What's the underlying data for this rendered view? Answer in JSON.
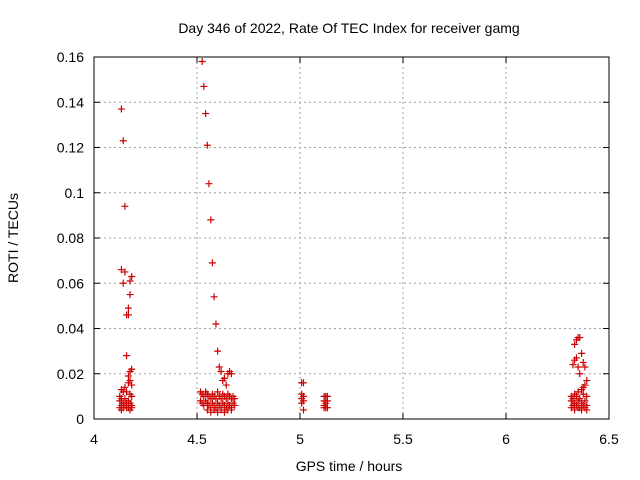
{
  "chart_data": {
    "type": "scatter",
    "title": "Day 346 of 2022, Rate Of TEC Index for receiver gamg",
    "xlabel": "GPS time / hours",
    "ylabel": "ROTI / TECUs",
    "xlim": [
      4,
      6.5
    ],
    "ylim": [
      0,
      0.16
    ],
    "x_ticks": [
      "4",
      "4.5",
      "5",
      "5.5",
      "6",
      "6.5"
    ],
    "y_ticks": [
      "0",
      "0.02",
      "0.04",
      "0.06",
      "0.08",
      "0.1",
      "0.12",
      "0.14",
      "0.16"
    ],
    "grid": true,
    "marker": "plus",
    "series_color": "#cc0000",
    "points": [
      [
        4.133,
        0.137
      ],
      [
        4.142,
        0.123
      ],
      [
        4.15,
        0.094
      ],
      [
        4.133,
        0.066
      ],
      [
        4.15,
        0.065
      ],
      [
        4.142,
        0.06
      ],
      [
        4.183,
        0.063
      ],
      [
        4.175,
        0.061
      ],
      [
        4.175,
        0.055
      ],
      [
        4.167,
        0.049
      ],
      [
        4.158,
        0.046
      ],
      [
        4.167,
        0.046
      ],
      [
        4.158,
        0.028
      ],
      [
        4.183,
        0.022
      ],
      [
        4.175,
        0.021
      ],
      [
        4.167,
        0.019
      ],
      [
        4.175,
        0.017
      ],
      [
        4.167,
        0.016
      ],
      [
        4.183,
        0.015
      ],
      [
        4.15,
        0.014
      ],
      [
        4.133,
        0.013
      ],
      [
        4.142,
        0.012
      ],
      [
        4.158,
        0.012
      ],
      [
        4.175,
        0.011
      ],
      [
        4.125,
        0.01
      ],
      [
        4.183,
        0.01
      ],
      [
        4.133,
        0.009
      ],
      [
        4.15,
        0.009
      ],
      [
        4.167,
        0.008
      ],
      [
        4.125,
        0.008
      ],
      [
        4.142,
        0.007
      ],
      [
        4.158,
        0.007
      ],
      [
        4.175,
        0.007
      ],
      [
        4.183,
        0.006
      ],
      [
        4.133,
        0.006
      ],
      [
        4.15,
        0.006
      ],
      [
        4.167,
        0.005
      ],
      [
        4.125,
        0.005
      ],
      [
        4.142,
        0.005
      ],
      [
        4.158,
        0.005
      ],
      [
        4.175,
        0.004
      ],
      [
        4.183,
        0.005
      ],
      [
        4.133,
        0.004
      ],
      [
        4.525,
        0.158
      ],
      [
        4.533,
        0.147
      ],
      [
        4.542,
        0.135
      ],
      [
        4.55,
        0.121
      ],
      [
        4.558,
        0.104
      ],
      [
        4.567,
        0.088
      ],
      [
        4.575,
        0.069
      ],
      [
        4.583,
        0.054
      ],
      [
        4.592,
        0.042
      ],
      [
        4.6,
        0.03
      ],
      [
        4.608,
        0.023
      ],
      [
        4.617,
        0.021
      ],
      [
        4.625,
        0.017
      ],
      [
        4.633,
        0.018
      ],
      [
        4.65,
        0.02
      ],
      [
        4.658,
        0.021
      ],
      [
        4.667,
        0.02
      ],
      [
        4.642,
        0.015
      ],
      [
        4.517,
        0.012
      ],
      [
        4.525,
        0.011
      ],
      [
        4.533,
        0.01
      ],
      [
        4.542,
        0.012
      ],
      [
        4.55,
        0.011
      ],
      [
        4.558,
        0.01
      ],
      [
        4.567,
        0.009
      ],
      [
        4.575,
        0.011
      ],
      [
        4.583,
        0.01
      ],
      [
        4.592,
        0.009
      ],
      [
        4.6,
        0.012
      ],
      [
        4.608,
        0.01
      ],
      [
        4.617,
        0.009
      ],
      [
        4.625,
        0.011
      ],
      [
        4.633,
        0.01
      ],
      [
        4.642,
        0.009
      ],
      [
        4.65,
        0.011
      ],
      [
        4.658,
        0.01
      ],
      [
        4.667,
        0.009
      ],
      [
        4.675,
        0.01
      ],
      [
        4.683,
        0.009
      ],
      [
        4.517,
        0.008
      ],
      [
        4.525,
        0.007
      ],
      [
        4.533,
        0.006
      ],
      [
        4.542,
        0.008
      ],
      [
        4.55,
        0.007
      ],
      [
        4.558,
        0.006
      ],
      [
        4.567,
        0.005
      ],
      [
        4.575,
        0.007
      ],
      [
        4.583,
        0.006
      ],
      [
        4.592,
        0.005
      ],
      [
        4.6,
        0.007
      ],
      [
        4.608,
        0.006
      ],
      [
        4.617,
        0.005
      ],
      [
        4.625,
        0.007
      ],
      [
        4.633,
        0.006
      ],
      [
        4.642,
        0.005
      ],
      [
        4.65,
        0.007
      ],
      [
        4.658,
        0.006
      ],
      [
        4.667,
        0.005
      ],
      [
        4.675,
        0.007
      ],
      [
        4.683,
        0.006
      ],
      [
        4.55,
        0.004
      ],
      [
        4.567,
        0.003
      ],
      [
        4.583,
        0.004
      ],
      [
        4.6,
        0.003
      ],
      [
        4.617,
        0.004
      ],
      [
        4.633,
        0.003
      ],
      [
        4.65,
        0.004
      ],
      [
        4.667,
        0.004
      ],
      [
        5.008,
        0.016
      ],
      [
        5.017,
        0.016
      ],
      [
        5.008,
        0.011
      ],
      [
        5.017,
        0.01
      ],
      [
        5.008,
        0.009
      ],
      [
        5.017,
        0.008
      ],
      [
        5.008,
        0.007
      ],
      [
        5.017,
        0.004
      ],
      [
        5.117,
        0.01
      ],
      [
        5.125,
        0.01
      ],
      [
        5.133,
        0.01
      ],
      [
        5.117,
        0.008
      ],
      [
        5.125,
        0.007
      ],
      [
        5.133,
        0.008
      ],
      [
        5.117,
        0.006
      ],
      [
        5.125,
        0.005
      ],
      [
        5.133,
        0.005
      ],
      [
        5.117,
        0.005
      ],
      [
        6.325,
        0.024
      ],
      [
        6.333,
        0.033
      ],
      [
        6.342,
        0.035
      ],
      [
        6.35,
        0.036
      ],
      [
        6.358,
        0.036
      ],
      [
        6.342,
        0.027
      ],
      [
        6.333,
        0.026
      ],
      [
        6.35,
        0.023
      ],
      [
        6.358,
        0.02
      ],
      [
        6.367,
        0.029
      ],
      [
        6.375,
        0.025
      ],
      [
        6.383,
        0.023
      ],
      [
        6.392,
        0.017
      ],
      [
        6.383,
        0.015
      ],
      [
        6.375,
        0.014
      ],
      [
        6.367,
        0.013
      ],
      [
        6.35,
        0.012
      ],
      [
        6.333,
        0.011
      ],
      [
        6.317,
        0.01
      ],
      [
        6.325,
        0.009
      ],
      [
        6.342,
        0.01
      ],
      [
        6.358,
        0.009
      ],
      [
        6.375,
        0.011
      ],
      [
        6.392,
        0.01
      ],
      [
        6.317,
        0.008
      ],
      [
        6.333,
        0.007
      ],
      [
        6.35,
        0.008
      ],
      [
        6.367,
        0.007
      ],
      [
        6.383,
        0.008
      ],
      [
        6.325,
        0.006
      ],
      [
        6.342,
        0.006
      ],
      [
        6.358,
        0.005
      ],
      [
        6.375,
        0.006
      ],
      [
        6.392,
        0.006
      ],
      [
        6.317,
        0.005
      ],
      [
        6.333,
        0.004
      ],
      [
        6.35,
        0.005
      ],
      [
        6.367,
        0.004
      ],
      [
        6.383,
        0.005
      ],
      [
        6.392,
        0.004
      ]
    ]
  }
}
